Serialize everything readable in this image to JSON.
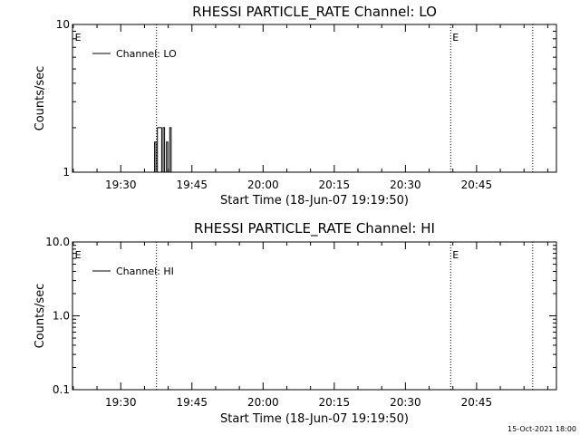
{
  "footer_timestamp": "15-Oct-2021 18:00",
  "chart_data": [
    {
      "type": "line",
      "title": "RHESSI PARTICLE_RATE Channel: LO",
      "xlabel": "Start Time (18-Jun-07 19:19:50)",
      "ylabel": "Counts/sec",
      "yscale": "log",
      "ylim": [
        1,
        10
      ],
      "ytick_values": [
        1,
        10
      ],
      "ytick_labels": [
        "1",
        "10"
      ],
      "xlim_minutes_since_start": [
        0,
        102
      ],
      "xtick_labels": [
        "19:30",
        "19:45",
        "20:00",
        "20:15",
        "20:30",
        "20:45"
      ],
      "xtick_minutes_since_start": [
        10.17,
        25.17,
        40.17,
        55.17,
        70.17,
        85.17
      ],
      "vlines_minutes_since_start": [
        17.7,
        79.7,
        97.0
      ],
      "flags": [
        {
          "label": "E",
          "minutes_since_start": 0.3
        },
        {
          "label": "E",
          "minutes_since_start": 79.9
        }
      ],
      "legend": {
        "placement": "top-left",
        "entries": [
          "Channel: LO"
        ]
      },
      "grid": false,
      "series": [
        {
          "name": "Channel: LO",
          "step": true,
          "x": [
            17.0,
            17.3,
            17.3,
            17.6,
            17.6,
            17.9,
            17.9,
            18.8,
            18.8,
            19.1,
            19.1,
            19.4,
            19.4,
            19.8,
            19.8,
            20.1,
            20.1,
            20.5,
            20.5,
            20.8,
            20.8,
            21.1
          ],
          "y": [
            1,
            1,
            1.6,
            1.6,
            1,
            1,
            2,
            2,
            1,
            1,
            2,
            2,
            1,
            1,
            1.6,
            1.6,
            1,
            1,
            2,
            2,
            1,
            1
          ]
        }
      ]
    },
    {
      "type": "line",
      "title": "RHESSI PARTICLE_RATE Channel: HI",
      "xlabel": "Start Time (18-Jun-07 19:19:50)",
      "ylabel": "Counts/sec",
      "yscale": "log",
      "ylim": [
        0.1,
        10
      ],
      "ytick_values": [
        0.1,
        1,
        10
      ],
      "ytick_labels": [
        "0.1",
        "1.0",
        "10.0"
      ],
      "xlim_minutes_since_start": [
        0,
        102
      ],
      "xtick_labels": [
        "19:30",
        "19:45",
        "20:00",
        "20:15",
        "20:30",
        "20:45"
      ],
      "xtick_minutes_since_start": [
        10.17,
        25.17,
        40.17,
        55.17,
        70.17,
        85.17
      ],
      "vlines_minutes_since_start": [
        17.7,
        79.7,
        97.0
      ],
      "flags": [
        {
          "label": "E",
          "minutes_since_start": 0.3
        },
        {
          "label": "E",
          "minutes_since_start": 79.9
        }
      ],
      "legend": {
        "placement": "top-left",
        "entries": [
          "Channel: HI"
        ]
      },
      "grid": false,
      "series": [
        {
          "name": "Channel: HI",
          "step": true,
          "x": [],
          "y": []
        }
      ]
    }
  ]
}
